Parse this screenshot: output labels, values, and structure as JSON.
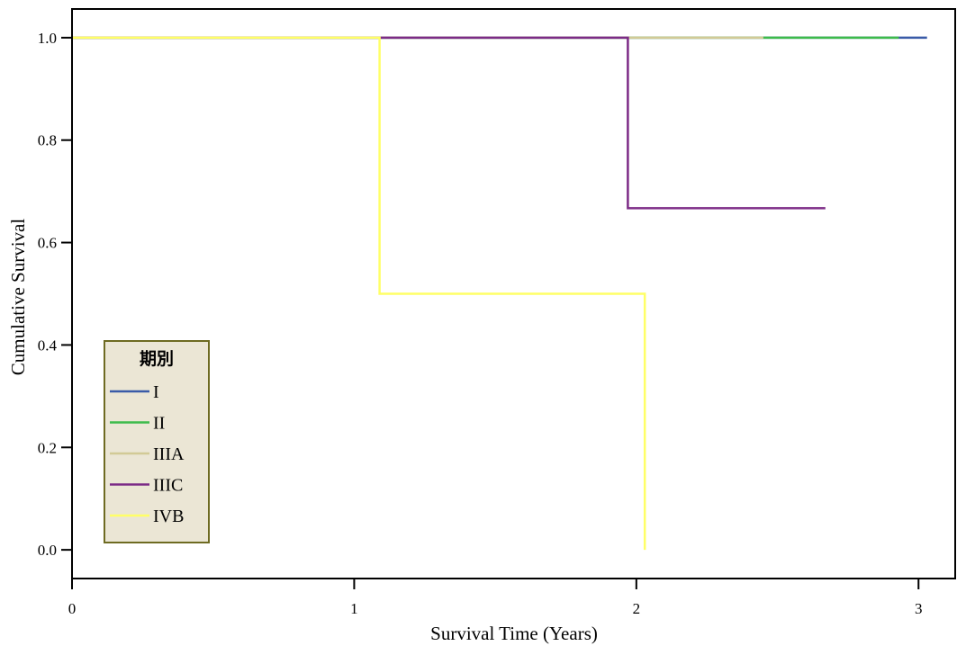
{
  "chart_data": {
    "type": "line",
    "title": "",
    "xlabel": "Survival Time (Years)",
    "ylabel": "Cumulative Survival",
    "xlim": [
      0,
      3.13
    ],
    "ylim": [
      -0.056,
      1.056
    ],
    "xticks": [
      0,
      1,
      2,
      3
    ],
    "xtick_labels": [
      "0",
      "1",
      "2",
      "3"
    ],
    "yticks": [
      1.0,
      0.8,
      0.6,
      0.4,
      0.2,
      0.0
    ],
    "ytick_labels": [
      "1.0",
      "0.8",
      "0.6",
      "0.4",
      "0.2",
      "0.0"
    ],
    "grid": false,
    "legend": {
      "title": "期別",
      "placement": "lower-left"
    },
    "series": [
      {
        "name": "I",
        "color": "#3a5ba8",
        "x": [
          0,
          3.03
        ],
        "y": [
          1.0,
          1.0
        ]
      },
      {
        "name": "II",
        "color": "#3dbb4b",
        "x": [
          0,
          2.93
        ],
        "y": [
          1.0,
          1.0
        ]
      },
      {
        "name": "IIIA",
        "color": "#d2ca96",
        "x": [
          0,
          2.45
        ],
        "y": [
          1.0,
          1.0
        ]
      },
      {
        "name": "IIIC",
        "color": "#7c2b86",
        "x": [
          0,
          1.97,
          1.97,
          2.67
        ],
        "y": [
          1.0,
          1.0,
          0.667,
          0.667
        ]
      },
      {
        "name": "IVB",
        "color": "#ffff66",
        "x": [
          0,
          1.09,
          1.09,
          2.03,
          2.03
        ],
        "y": [
          1.0,
          1.0,
          0.5,
          0.5,
          0.0
        ]
      }
    ],
    "colors": {
      "axis": "#000000",
      "legend_fill": "#ebe6d5",
      "legend_border": "#6e6b22",
      "background": "#ffffff"
    }
  }
}
